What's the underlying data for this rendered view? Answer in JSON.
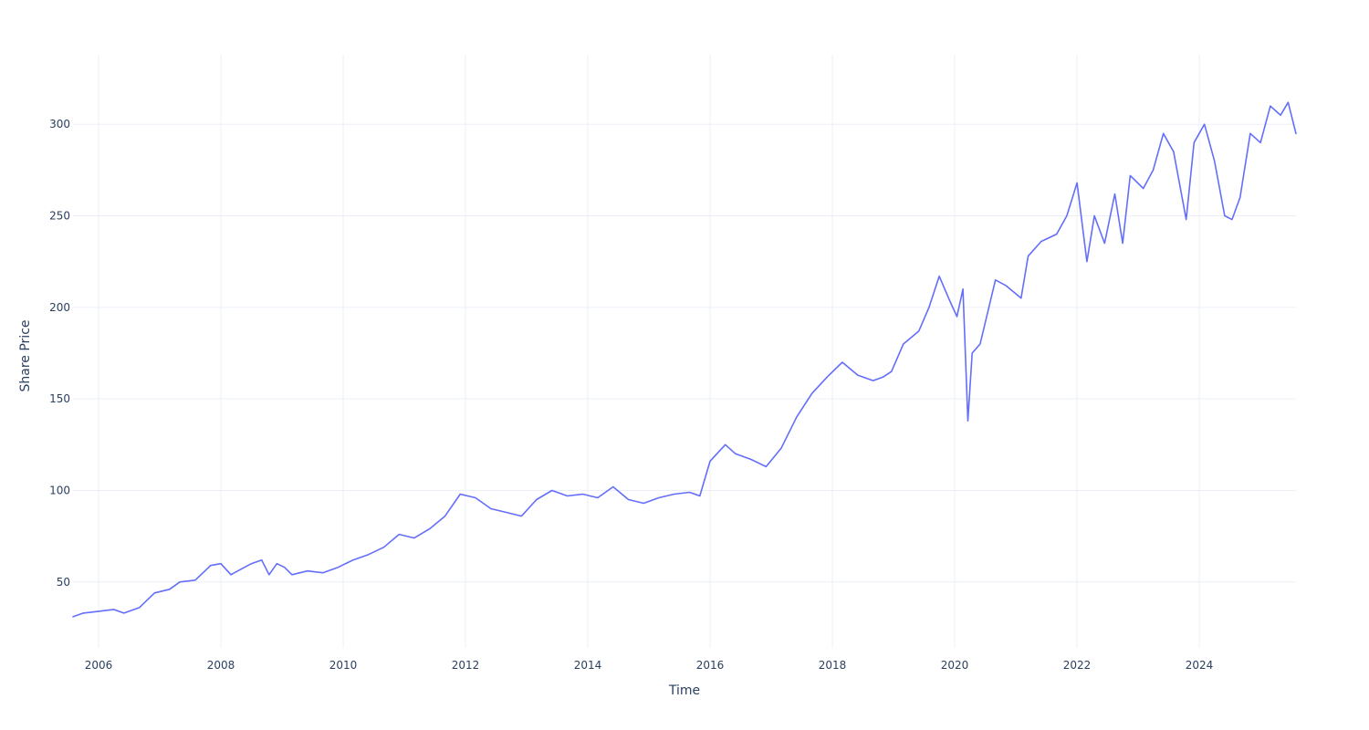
{
  "chart_data": {
    "type": "line",
    "xlabel": "Time",
    "ylabel": "Share Price",
    "x_ticks": [
      "2006",
      "2008",
      "2010",
      "2012",
      "2014",
      "2016",
      "2018",
      "2020",
      "2022",
      "2024"
    ],
    "y_ticks": [
      50,
      100,
      150,
      200,
      250,
      300
    ],
    "xlim": [
      "2005-08-01",
      "2025-08-01"
    ],
    "ylim": [
      14,
      338
    ],
    "grid": true,
    "colors": {
      "line": "#636efa",
      "grid": "#ebf0f8",
      "text": "#2a3f5f"
    },
    "series": [
      {
        "x": [
          "2005-08-01",
          "2005-10-01",
          "2006-01-01",
          "2006-04-01",
          "2006-06-01",
          "2006-09-01",
          "2006-12-01",
          "2007-03-01",
          "2007-05-01",
          "2007-08-01",
          "2007-11-01",
          "2008-01-01",
          "2008-03-01",
          "2008-05-01",
          "2008-07-01",
          "2008-09-01",
          "2008-10-15",
          "2008-12-01",
          "2009-01-15",
          "2009-03-01",
          "2009-06-01",
          "2009-09-01",
          "2009-12-01",
          "2010-03-01",
          "2010-06-01",
          "2010-09-01",
          "2010-12-01",
          "2011-03-01",
          "2011-06-01",
          "2011-09-01",
          "2011-12-01",
          "2012-03-01",
          "2012-06-01",
          "2012-09-01",
          "2012-12-01",
          "2013-03-01",
          "2013-06-01",
          "2013-09-01",
          "2013-12-01",
          "2014-03-01",
          "2014-06-01",
          "2014-09-01",
          "2014-12-01",
          "2015-03-01",
          "2015-06-01",
          "2015-09-01",
          "2015-11-01",
          "2016-01-01",
          "2016-04-01",
          "2016-06-01",
          "2016-09-01",
          "2016-12-01",
          "2017-03-01",
          "2017-06-01",
          "2017-09-01",
          "2017-12-01",
          "2018-03-01",
          "2018-06-01",
          "2018-09-01",
          "2018-11-01",
          "2018-12-20",
          "2019-03-01",
          "2019-06-01",
          "2019-08-01",
          "2019-10-01",
          "2019-12-01",
          "2020-01-15",
          "2020-02-20",
          "2020-03-20",
          "2020-04-15",
          "2020-06-01",
          "2020-09-01",
          "2020-11-01",
          "2021-02-01",
          "2021-03-15",
          "2021-06-01",
          "2021-09-01",
          "2021-11-01",
          "2022-01-01",
          "2022-03-01",
          "2022-04-15",
          "2022-06-15",
          "2022-08-15",
          "2022-10-01",
          "2022-11-15",
          "2023-02-01",
          "2023-04-01",
          "2023-06-01",
          "2023-08-01",
          "2023-10-15",
          "2023-12-01",
          "2024-02-01",
          "2024-04-01",
          "2024-06-01",
          "2024-07-15",
          "2024-09-01",
          "2024-11-01",
          "2025-01-01",
          "2025-03-01",
          "2025-05-01",
          "2025-06-15",
          "2025-08-01"
        ],
        "y": [
          31,
          33,
          34,
          35,
          33,
          36,
          44,
          46,
          50,
          51,
          59,
          60,
          54,
          57,
          60,
          62,
          54,
          60,
          58,
          54,
          56,
          55,
          58,
          62,
          65,
          69,
          76,
          74,
          79,
          86,
          98,
          96,
          90,
          88,
          86,
          95,
          100,
          97,
          98,
          96,
          102,
          95,
          93,
          96,
          98,
          99,
          97,
          116,
          125,
          120,
          117,
          113,
          123,
          140,
          153,
          162,
          170,
          163,
          160,
          162,
          165,
          180,
          187,
          200,
          217,
          204,
          195,
          210,
          138,
          175,
          180,
          215,
          212,
          205,
          228,
          236,
          240,
          250,
          268,
          225,
          250,
          235,
          262,
          235,
          272,
          265,
          275,
          295,
          285,
          248,
          290,
          300,
          280,
          250,
          248,
          260,
          295,
          290,
          310,
          305,
          312,
          295
        ]
      }
    ]
  }
}
